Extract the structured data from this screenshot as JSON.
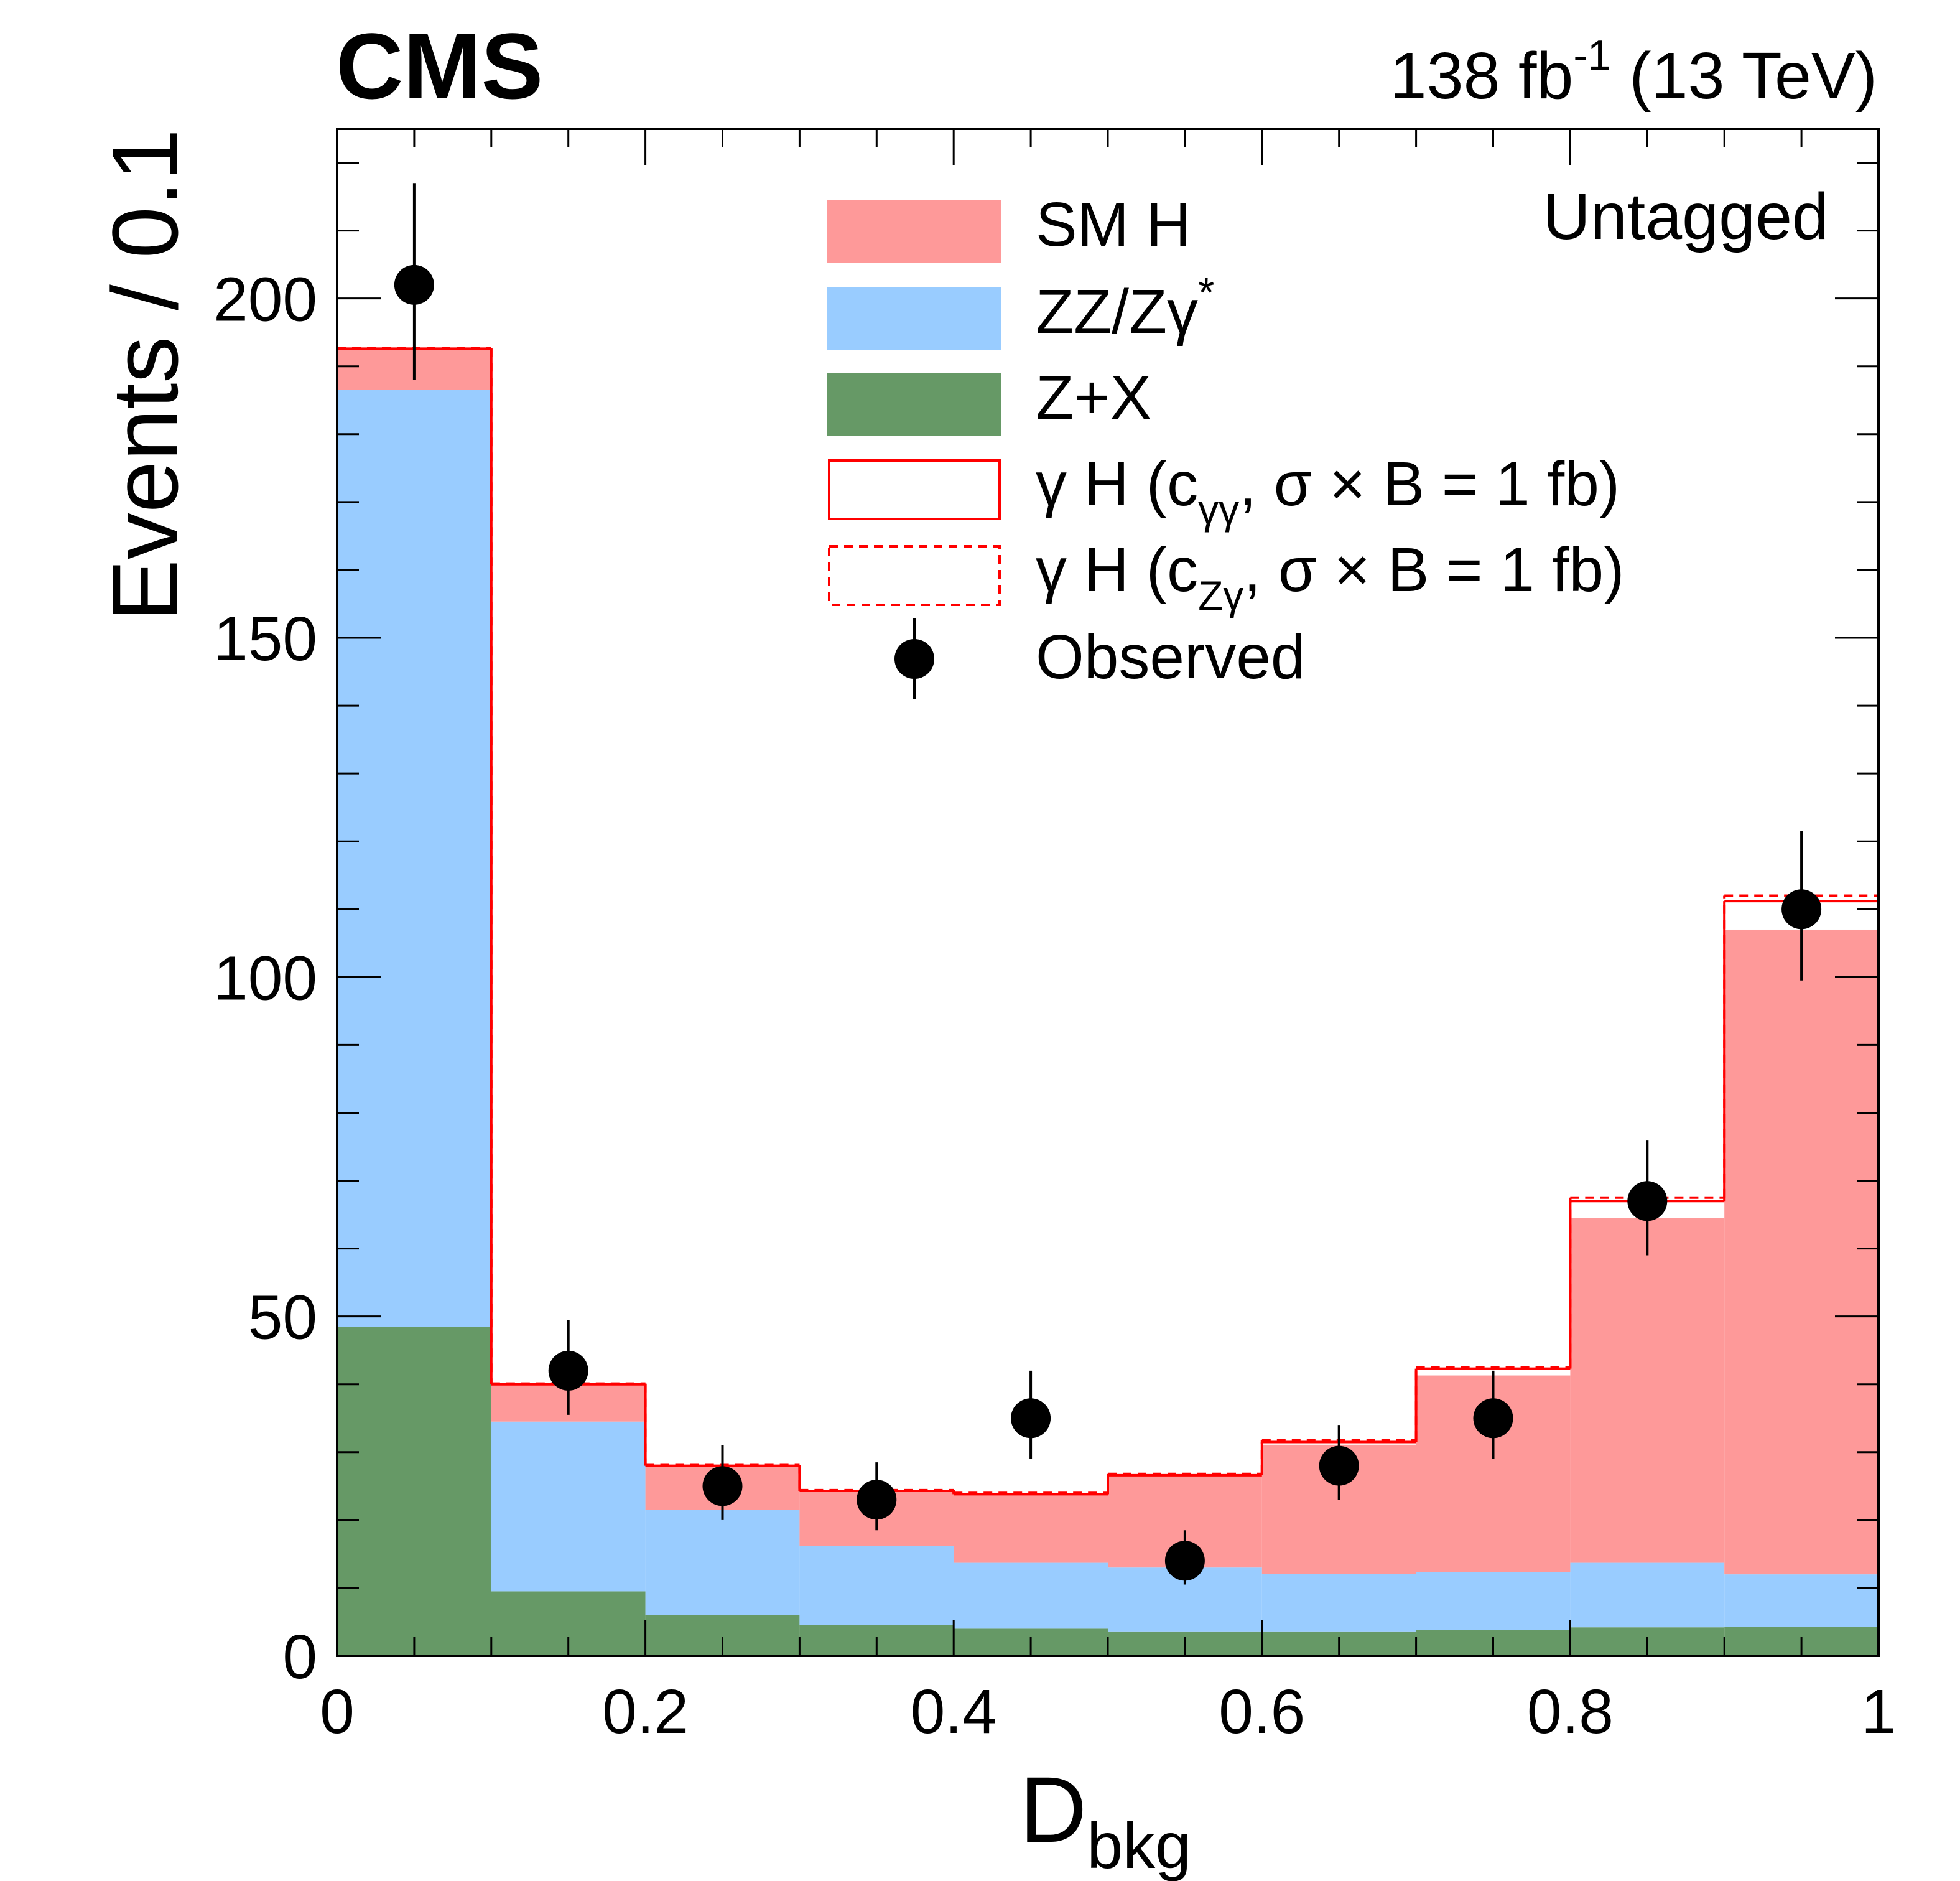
{
  "header": {
    "experiment": "CMS",
    "lumi_value": "138 fb",
    "lumi_exp": "-1",
    "energy": " (13 TeV)"
  },
  "category_label": "Untagged",
  "legend": {
    "sm_h": "SM H",
    "zz_base": "ZZ/Zγ",
    "zz_sup": "*",
    "zx": "Z+X",
    "sig1_pre": "γ H (c",
    "sig1_sub": "γγ",
    "sig1_post": ", σ × B = 1 fb)",
    "sig2_pre": "γ H (c",
    "sig2_sub": "Zγ",
    "sig2_post": ", σ × B = 1 fb)",
    "observed": "Observed"
  },
  "colors": {
    "sm_h": "#fe9999",
    "zz": "#99ccff",
    "zx": "#669966",
    "signal": "#ff0000",
    "data": "#000000"
  },
  "chart_data": {
    "type": "bar",
    "stacked": true,
    "xlabel_main": "D",
    "xlabel_sub": "bkg",
    "ylabel": "Events / 0.1",
    "xlim": [
      0,
      1
    ],
    "ylim": [
      0,
      225
    ],
    "x_ticks": [
      "0",
      "0.2",
      "0.4",
      "0.6",
      "0.8",
      "1"
    ],
    "y_ticks": [
      "0",
      "50",
      "100",
      "150",
      "200"
    ],
    "bin_edges": [
      0,
      0.1,
      0.2,
      0.3,
      0.4,
      0.5,
      0.6,
      0.7,
      0.8,
      0.9,
      1.0
    ],
    "series": [
      {
        "name": "Z+X",
        "values": [
          48.5,
          9.5,
          6,
          4.5,
          4,
          3.5,
          3.5,
          3.8,
          4.2,
          4.3
        ]
      },
      {
        "name": "ZZ/Zγ*",
        "values": [
          138,
          25,
          15.5,
          11.7,
          9.7,
          9.5,
          8.6,
          8.5,
          9.5,
          7.7
        ]
      },
      {
        "name": "SM H",
        "values": [
          6,
          5.5,
          6.5,
          8,
          10,
          13.5,
          19,
          29,
          50.8,
          95
        ]
      },
      {
        "name": "γ H (cγγ, σ × B = 1 fb)",
        "totals": [
          192.6,
          40,
          28,
          24.3,
          23.8,
          26.6,
          31.5,
          42.3,
          67,
          111.2
        ]
      },
      {
        "name": "γ H (cZγ, σ × B = 1 fb)",
        "totals": [
          192.7,
          40.1,
          28.1,
          24.4,
          24,
          26.8,
          31.8,
          42.5,
          67.5,
          112
        ]
      }
    ],
    "observed": {
      "name": "Observed",
      "x": [
        0.05,
        0.15,
        0.25,
        0.35,
        0.45,
        0.55,
        0.65,
        0.75,
        0.85,
        0.95
      ],
      "y": [
        202,
        42,
        25,
        23,
        35,
        14,
        28,
        35,
        67,
        110
      ],
      "err_up": [
        15,
        7.5,
        6,
        5.5,
        7,
        4.5,
        6,
        7,
        9,
        11.5
      ],
      "err_down": [
        14,
        6.5,
        5,
        4.5,
        6,
        3.5,
        5,
        6,
        8,
        10.5
      ]
    },
    "grid": false,
    "legend_position": "top-right"
  }
}
